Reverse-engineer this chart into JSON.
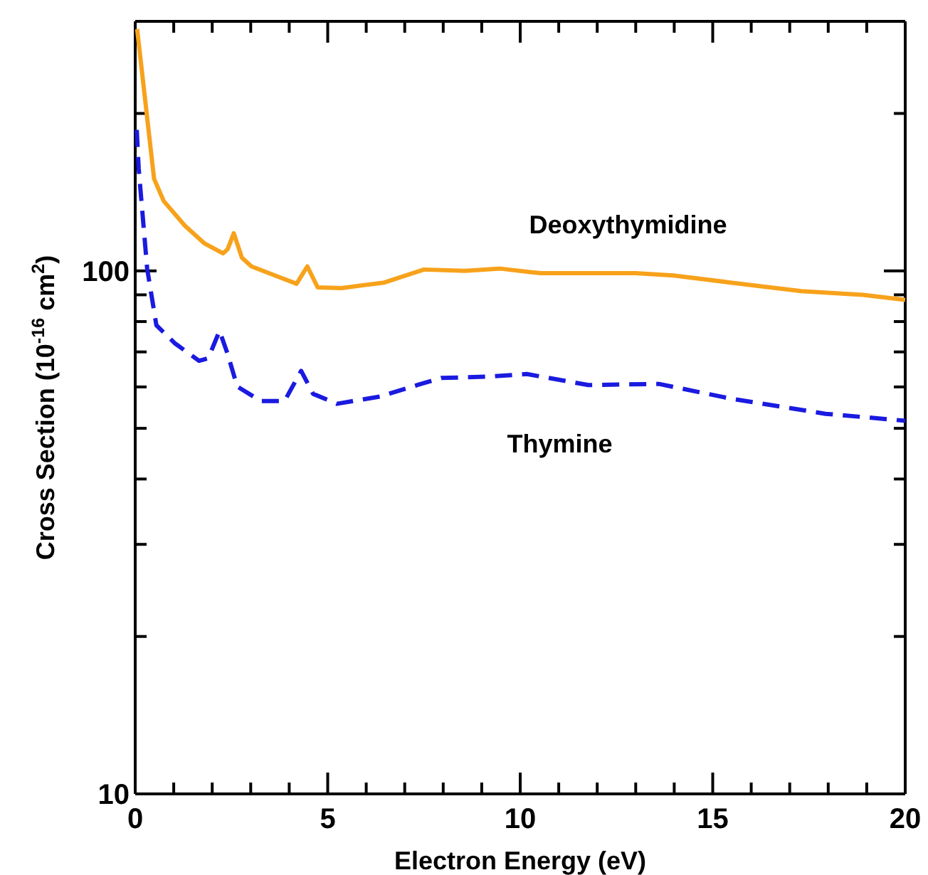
{
  "chart_data": {
    "type": "line",
    "xlabel": "Electron Energy (eV)",
    "ylabel": "Cross Section (10$^{-16}$ cm$^{2}$)",
    "log": "y",
    "xlim": [
      0,
      20
    ],
    "ylim": [
      10,
      300
    ],
    "xticks": [
      0,
      {
        "value": 1,
        "label": null
      },
      {
        "value": 2,
        "label": null
      },
      {
        "value": 3,
        "label": null
      },
      {
        "value": 4,
        "label": null
      },
      5,
      {
        "value": 6,
        "label": null
      },
      {
        "value": 7,
        "label": null
      },
      {
        "value": 8,
        "label": null
      },
      {
        "value": 9,
        "label": null
      },
      10,
      {
        "value": 11,
        "label": null
      },
      {
        "value": 12,
        "label": null
      },
      {
        "value": 13,
        "label": null
      },
      {
        "value": 14,
        "label": null
      },
      15,
      {
        "value": 16,
        "label": null
      },
      {
        "value": 17,
        "label": null
      },
      {
        "value": 18,
        "label": null
      },
      {
        "value": 19,
        "label": null
      },
      20
    ],
    "yticks": [
      10,
      {
        "value": 20,
        "label": null
      },
      {
        "value": 30,
        "label": null
      },
      {
        "value": 40,
        "label": null
      },
      {
        "value": 50,
        "label": null
      },
      {
        "value": 60,
        "label": null
      },
      {
        "value": 70,
        "label": null
      },
      {
        "value": 80,
        "label": null
      },
      {
        "value": 90,
        "label": null
      },
      100,
      {
        "value": 200,
        "label": null
      }
    ],
    "grid": false,
    "legend": false,
    "marker": "none",
    "series": [
      {
        "name": "Deoxythymidine",
        "color": "#f7a21b",
        "line_style": "solid",
        "x": [
          0.05,
          0.49,
          0.74,
          1.29,
          1.79,
          2.28,
          2.4,
          2.56,
          2.77,
          3.02,
          3.63,
          4.19,
          4.47,
          4.74,
          5.36,
          6.47,
          7.5,
          8.56,
          9.49,
          10.3,
          10.54,
          13.0,
          13.98,
          15.46,
          17.3,
          18.9,
          20
        ],
        "values": [
          290,
          150,
          136,
          122,
          113,
          108,
          110,
          118,
          106,
          102,
          98,
          94.5,
          102,
          93,
          92.7,
          95,
          100.6,
          100,
          101,
          99.4,
          99,
          99,
          98,
          95,
          91.5,
          90,
          88
        ]
      },
      {
        "name": "Thymine",
        "color": "#1a1ae0",
        "line_style": "dashed",
        "x": [
          0.04,
          0.09,
          0.31,
          0.55,
          1.04,
          1.66,
          1.9,
          2.19,
          2.4,
          2.65,
          3.26,
          3.88,
          4.31,
          4.62,
          5.24,
          6.35,
          7.33,
          7.95,
          9.18,
          10.17,
          11.77,
          13.6,
          15.46,
          17.93,
          20
        ],
        "values": [
          186,
          157,
          101,
          78.7,
          72.6,
          67.3,
          68.1,
          76.8,
          69.4,
          60.1,
          56.4,
          56.4,
          64.4,
          58.2,
          55.7,
          57.5,
          60.5,
          62.4,
          62.8,
          63.5,
          60.5,
          60.8,
          57,
          53.3,
          51.7
        ]
      }
    ]
  }
}
